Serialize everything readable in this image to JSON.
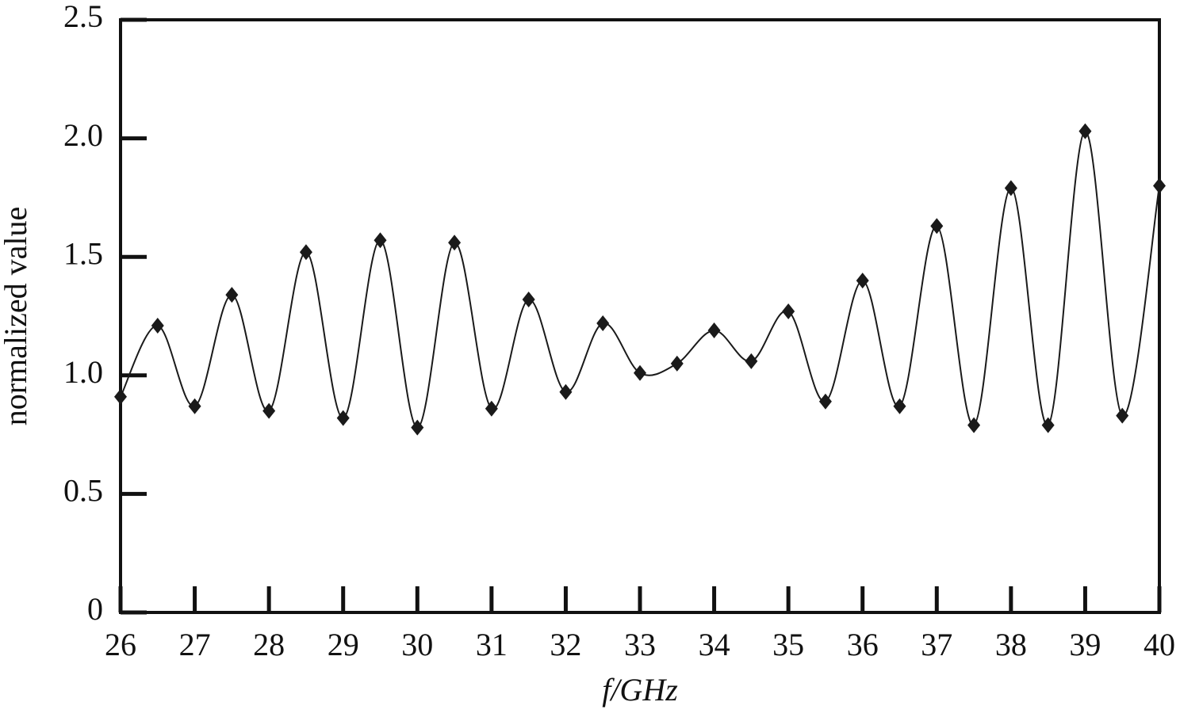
{
  "chart_data": {
    "type": "line",
    "x_label": "f/GHz",
    "y_label": "normalized value",
    "x": [
      26,
      26.5,
      27,
      27.5,
      28,
      28.5,
      29,
      29.5,
      30,
      30.5,
      31,
      31.5,
      32,
      32.5,
      33,
      33.5,
      34,
      34.5,
      35,
      35.5,
      36,
      36.5,
      37,
      37.5,
      38,
      38.5,
      39,
      39.5,
      40
    ],
    "series": [
      {
        "color": "#1a1a1a",
        "values": [
          0.91,
          1.21,
          0.87,
          1.34,
          0.85,
          1.52,
          0.82,
          1.57,
          0.78,
          1.56,
          0.86,
          1.32,
          0.93,
          1.22,
          1.01,
          1.05,
          1.19,
          1.06,
          1.27,
          0.89,
          1.4,
          0.87,
          1.63,
          0.79,
          1.79,
          0.79,
          2.03,
          0.83,
          1.8
        ]
      }
    ],
    "xlim": [
      26,
      40
    ],
    "xticks": [
      26,
      27,
      28,
      29,
      30,
      31,
      32,
      33,
      34,
      35,
      36,
      37,
      38,
      39,
      40
    ],
    "ylim": [
      0,
      2.5
    ],
    "yticks": [
      0,
      0.5,
      {
        "value": 1,
        "label": "1.0"
      },
      1.5,
      {
        "value": 2,
        "label": "2.0"
      },
      2.5
    ],
    "grid": false
  }
}
